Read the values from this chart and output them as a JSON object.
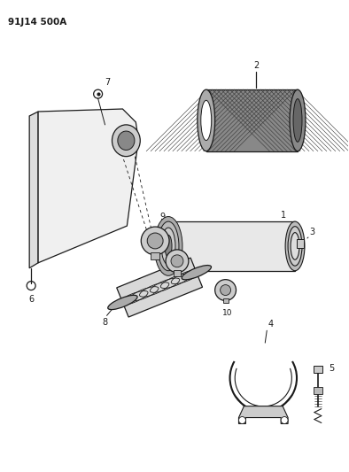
{
  "title": "91J14 500A",
  "bg_color": "#ffffff",
  "line_color": "#1a1a1a",
  "fig_width": 3.94,
  "fig_height": 5.33,
  "dpi": 100
}
